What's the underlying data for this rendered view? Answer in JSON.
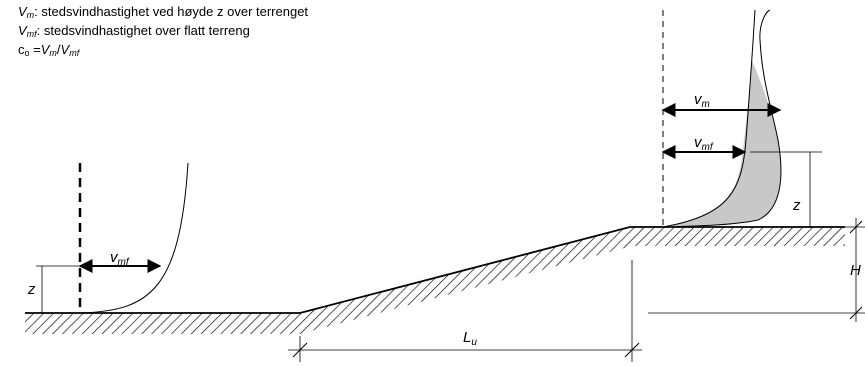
{
  "legend": {
    "line1": {
      "sym": "V",
      "sub": "m",
      "text": ": stedsvindhastighet ved høyde z over terrenget"
    },
    "line2": {
      "sym": "V",
      "sub": "mf",
      "text": ": stedsvindhastighet over flatt terreng"
    },
    "line3": {
      "c": "c",
      "csub": "o",
      "eq": " =",
      "v1": "V",
      "v1sub": "m",
      "slash": "/",
      "v2": "V",
      "v2sub": "mf"
    }
  },
  "labels": {
    "z_left": "z",
    "vmf_left": {
      "main": "v",
      "sub": "mf"
    },
    "vm_right": {
      "main": "v",
      "sub": "m"
    },
    "vmf_right": {
      "main": "v",
      "sub": "mf"
    },
    "z_right": "z",
    "H": "H",
    "Lu": {
      "main": "L",
      "sub": "u"
    }
  }
}
